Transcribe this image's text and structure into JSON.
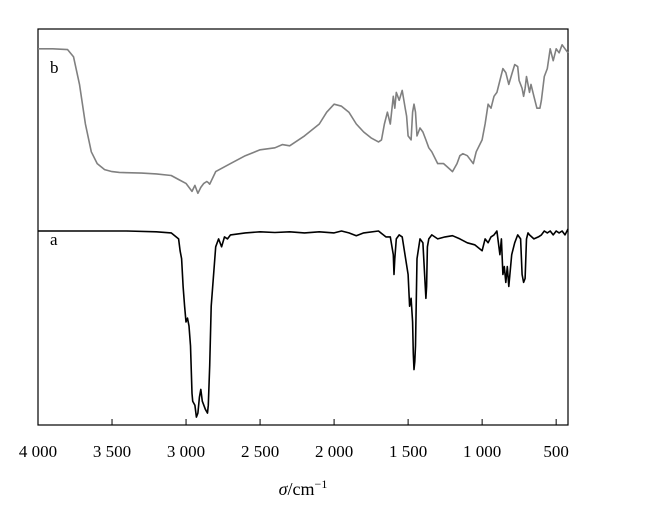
{
  "chart_data": {
    "type": "line",
    "title": "",
    "xlabel_symbol": "σ",
    "xlabel_unit": "/cm",
    "xlabel_exp": "−1",
    "ylabel": "",
    "xlim": [
      4000,
      420
    ],
    "ylim": [
      0,
      1
    ],
    "x_reversed": true,
    "y_ticks_shown": false,
    "grid": false,
    "legend": "none",
    "xticks": [
      {
        "value": 4000,
        "label": "4 000"
      },
      {
        "value": 3500,
        "label": "3 500"
      },
      {
        "value": 3000,
        "label": "3 000"
      },
      {
        "value": 2500,
        "label": "2 500"
      },
      {
        "value": 2000,
        "label": "2 000"
      },
      {
        "value": 1500,
        "label": "1 500"
      },
      {
        "value": 1000,
        "label": "1 000"
      },
      {
        "value": 500,
        "label": "500"
      }
    ],
    "series": [
      {
        "name": "b",
        "color": "#808080",
        "x": [
          4000,
          3900,
          3800,
          3760,
          3720,
          3680,
          3640,
          3600,
          3550,
          3500,
          3450,
          3400,
          3300,
          3200,
          3100,
          3050,
          3000,
          2980,
          2960,
          2940,
          2930,
          2920,
          2900,
          2880,
          2860,
          2850,
          2840,
          2800,
          2700,
          2600,
          2500,
          2400,
          2350,
          2300,
          2200,
          2100,
          2050,
          2000,
          1950,
          1900,
          1850,
          1800,
          1750,
          1700,
          1680,
          1660,
          1640,
          1620,
          1600,
          1590,
          1580,
          1560,
          1540,
          1520,
          1510,
          1500,
          1480,
          1470,
          1460,
          1450,
          1440,
          1420,
          1400,
          1380,
          1360,
          1340,
          1300,
          1260,
          1230,
          1200,
          1170,
          1150,
          1130,
          1100,
          1080,
          1060,
          1040,
          1000,
          980,
          960,
          940,
          920,
          900,
          880,
          860,
          840,
          820,
          800,
          780,
          760,
          750,
          740,
          730,
          720,
          710,
          700,
          690,
          680,
          670,
          650,
          630,
          610,
          600,
          580,
          560,
          540,
          520,
          500,
          480,
          460,
          440,
          420
        ],
        "y": [
          0.95,
          0.95,
          0.948,
          0.93,
          0.86,
          0.76,
          0.69,
          0.66,
          0.645,
          0.64,
          0.638,
          0.637,
          0.636,
          0.634,
          0.63,
          0.62,
          0.61,
          0.6,
          0.59,
          0.605,
          0.595,
          0.585,
          0.6,
          0.61,
          0.615,
          0.612,
          0.608,
          0.64,
          0.66,
          0.68,
          0.695,
          0.7,
          0.708,
          0.705,
          0.73,
          0.76,
          0.79,
          0.81,
          0.805,
          0.79,
          0.76,
          0.74,
          0.725,
          0.715,
          0.72,
          0.76,
          0.79,
          0.76,
          0.83,
          0.8,
          0.84,
          0.82,
          0.845,
          0.8,
          0.78,
          0.73,
          0.72,
          0.79,
          0.81,
          0.79,
          0.73,
          0.75,
          0.74,
          0.72,
          0.7,
          0.69,
          0.66,
          0.66,
          0.65,
          0.64,
          0.66,
          0.68,
          0.685,
          0.68,
          0.67,
          0.66,
          0.69,
          0.72,
          0.76,
          0.81,
          0.8,
          0.83,
          0.84,
          0.87,
          0.9,
          0.89,
          0.86,
          0.885,
          0.91,
          0.905,
          0.87,
          0.86,
          0.85,
          0.83,
          0.85,
          0.88,
          0.86,
          0.84,
          0.86,
          0.83,
          0.8,
          0.8,
          0.82,
          0.88,
          0.9,
          0.95,
          0.92,
          0.95,
          0.94,
          0.96,
          0.95,
          0.94
        ]
      },
      {
        "name": "a",
        "color": "#000000",
        "x": [
          4000,
          3800,
          3600,
          3400,
          3200,
          3100,
          3050,
          3040,
          3030,
          3020,
          3010,
          3000,
          2990,
          2980,
          2970,
          2960,
          2955,
          2940,
          2930,
          2920,
          2910,
          2900,
          2890,
          2870,
          2855,
          2850,
          2840,
          2830,
          2800,
          2780,
          2760,
          2740,
          2720,
          2700,
          2600,
          2500,
          2400,
          2300,
          2200,
          2100,
          2000,
          1950,
          1900,
          1850,
          1800,
          1700,
          1650,
          1620,
          1600,
          1595,
          1590,
          1580,
          1560,
          1540,
          1500,
          1490,
          1480,
          1470,
          1465,
          1460,
          1455,
          1450,
          1440,
          1420,
          1400,
          1390,
          1380,
          1375,
          1370,
          1360,
          1340,
          1300,
          1250,
          1200,
          1150,
          1100,
          1050,
          1000,
          980,
          960,
          940,
          920,
          900,
          880,
          870,
          860,
          850,
          840,
          830,
          820,
          800,
          780,
          760,
          740,
          730,
          720,
          710,
          700,
          690,
          680,
          650,
          620,
          600,
          580,
          560,
          540,
          520,
          500,
          480,
          460,
          440,
          420
        ],
        "y": [
          0.49,
          0.49,
          0.49,
          0.49,
          0.488,
          0.485,
          0.47,
          0.44,
          0.42,
          0.35,
          0.3,
          0.26,
          0.27,
          0.25,
          0.2,
          0.08,
          0.06,
          0.05,
          0.02,
          0.03,
          0.07,
          0.09,
          0.06,
          0.04,
          0.03,
          0.05,
          0.15,
          0.3,
          0.45,
          0.47,
          0.45,
          0.475,
          0.47,
          0.48,
          0.485,
          0.488,
          0.486,
          0.488,
          0.485,
          0.488,
          0.485,
          0.49,
          0.485,
          0.478,
          0.485,
          0.49,
          0.475,
          0.475,
          0.43,
          0.38,
          0.42,
          0.47,
          0.48,
          0.475,
          0.38,
          0.3,
          0.32,
          0.26,
          0.18,
          0.14,
          0.16,
          0.2,
          0.42,
          0.47,
          0.46,
          0.39,
          0.32,
          0.35,
          0.45,
          0.47,
          0.48,
          0.47,
          0.475,
          0.478,
          0.47,
          0.46,
          0.455,
          0.44,
          0.47,
          0.46,
          0.475,
          0.48,
          0.49,
          0.43,
          0.47,
          0.38,
          0.4,
          0.36,
          0.4,
          0.35,
          0.43,
          0.46,
          0.48,
          0.47,
          0.38,
          0.36,
          0.37,
          0.47,
          0.485,
          0.48,
          0.47,
          0.475,
          0.48,
          0.49,
          0.485,
          0.49,
          0.48,
          0.49,
          0.485,
          0.49,
          0.48,
          0.495
        ]
      }
    ],
    "curve_labels": [
      {
        "series": "b",
        "text": "b"
      },
      {
        "series": "a",
        "text": "a"
      }
    ]
  }
}
